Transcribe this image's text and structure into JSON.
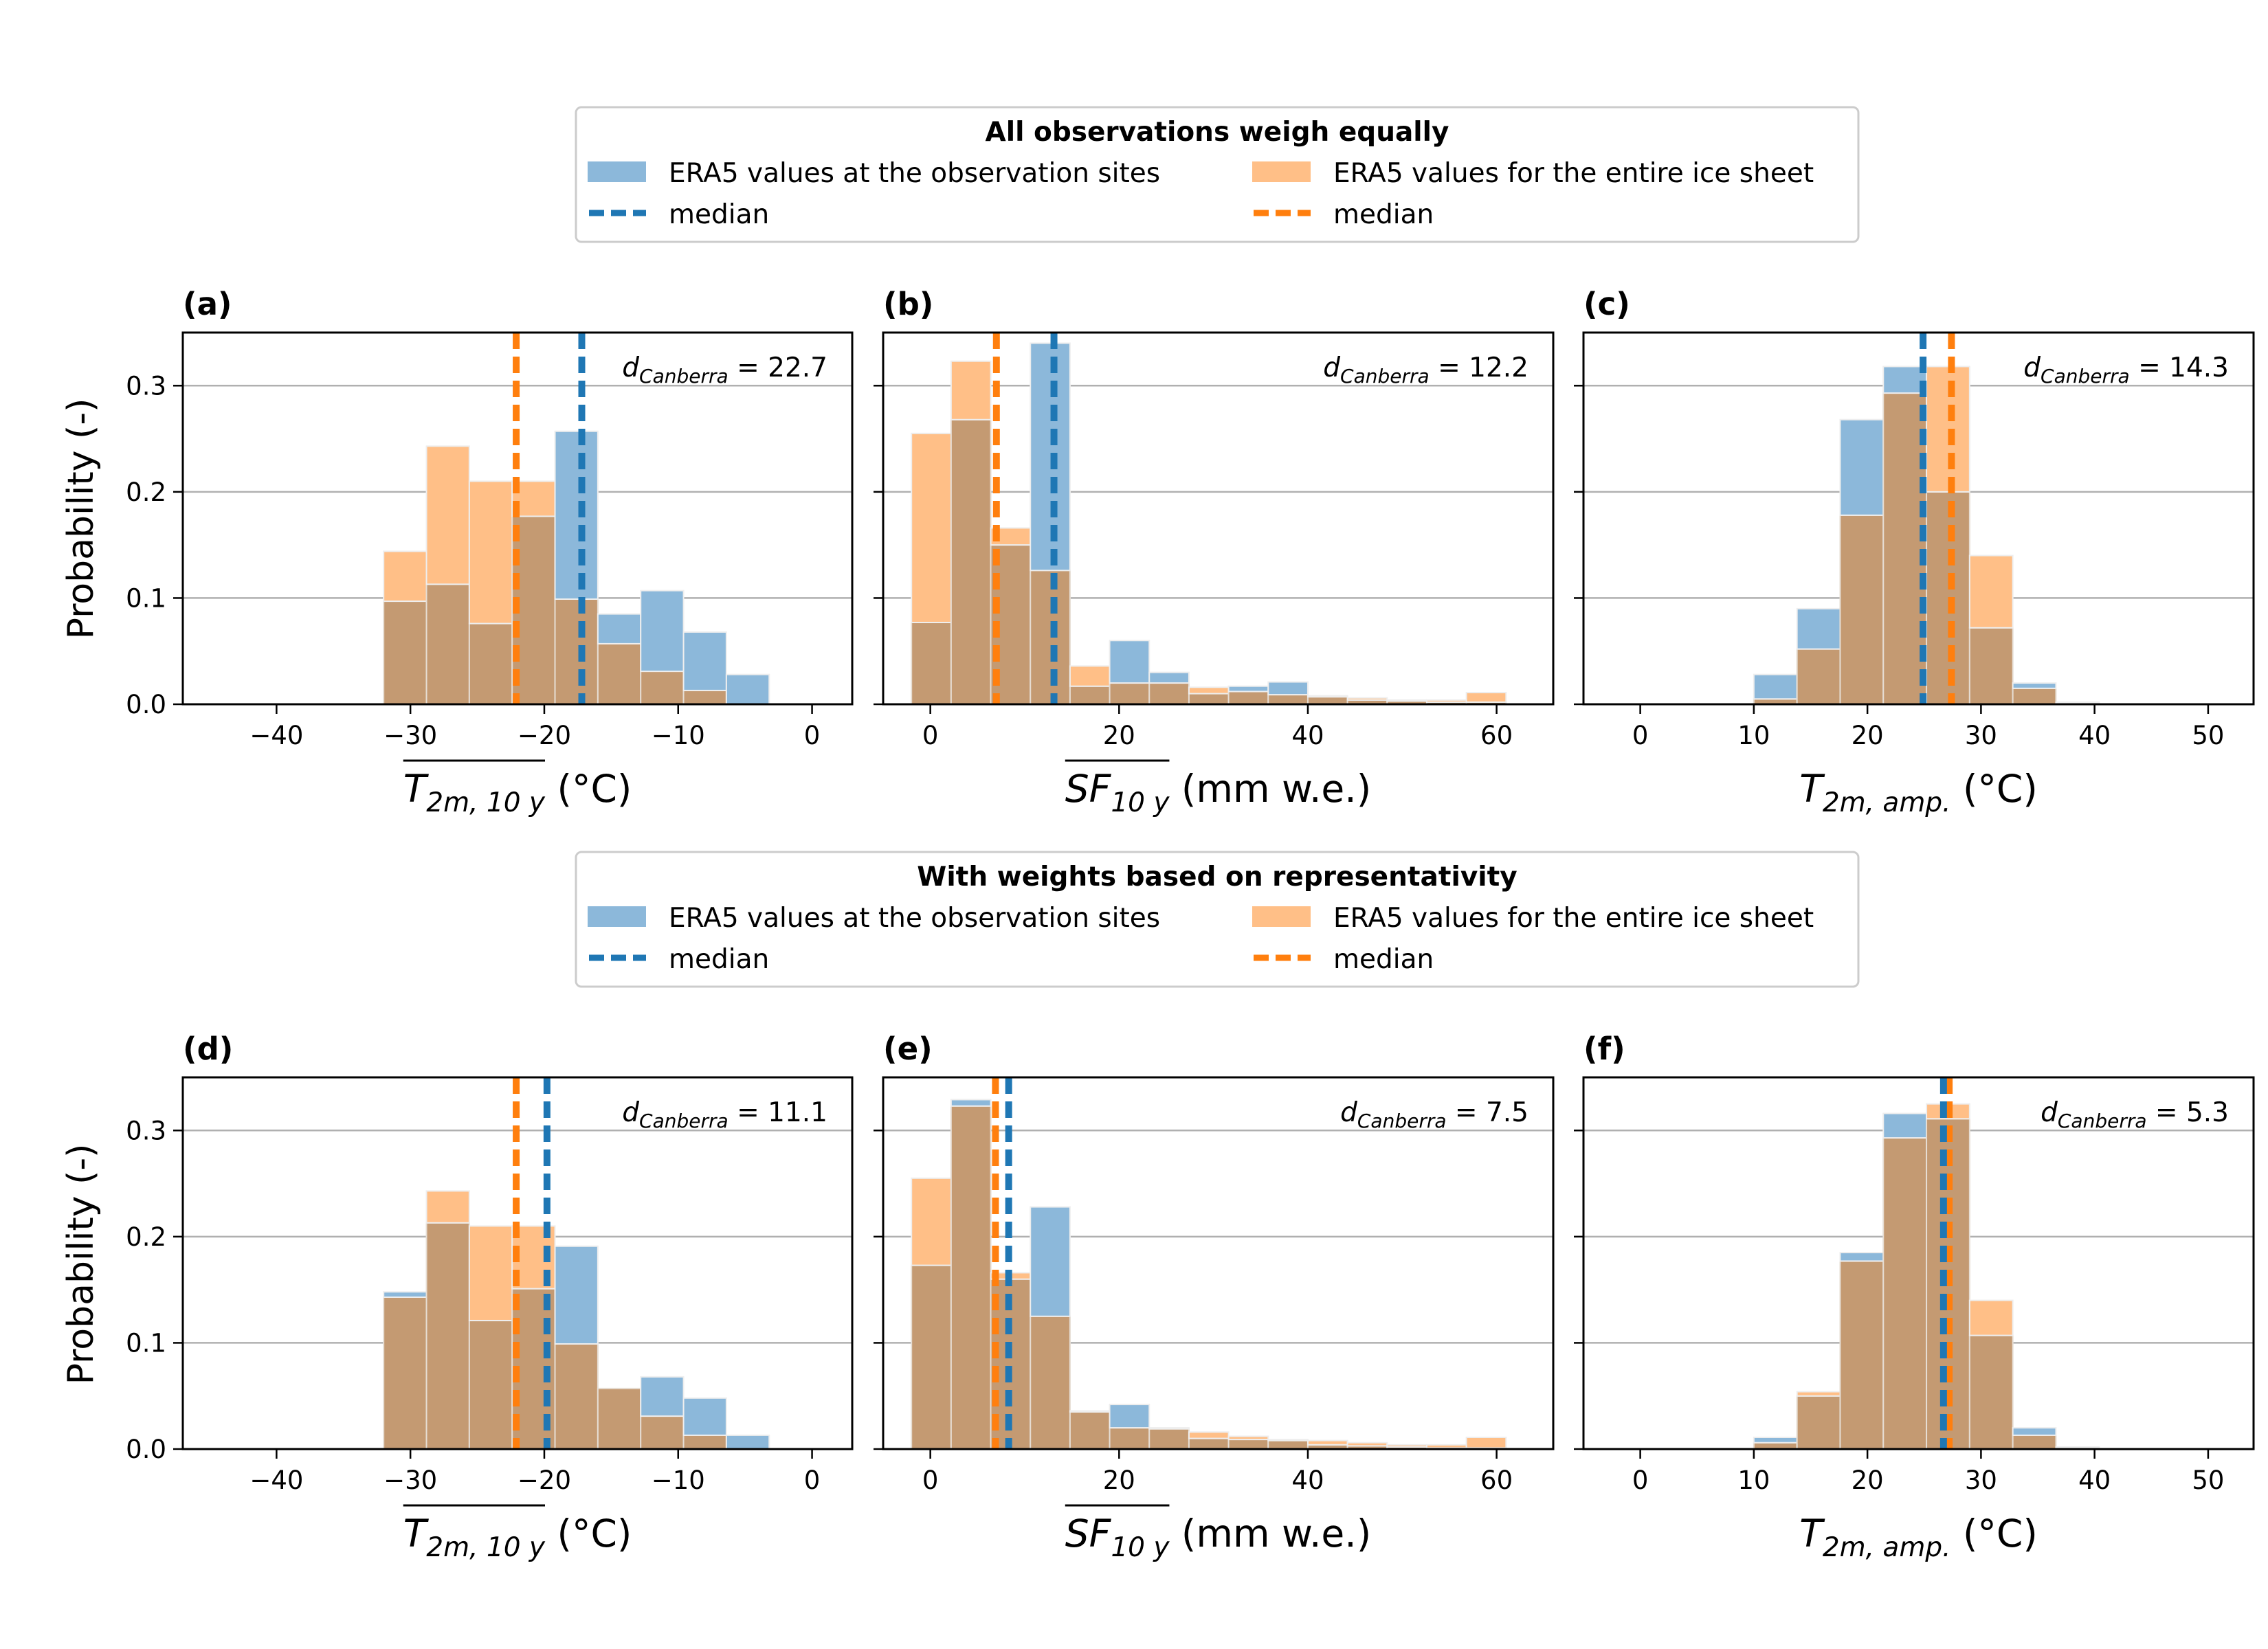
{
  "colors": {
    "sites": "#1f77b4",
    "sites_fill": "#8cb8da",
    "ice": "#ff7f0e",
    "ice_fill": "#ffbf87",
    "overlap": "#c49a72",
    "grid": "#b0b0b0"
  },
  "legends": [
    {
      "title": "All observations weigh equally",
      "entries": [
        "ERA5 values at the observation sites",
        "ERA5 values for the entire ice sheet",
        "median",
        "median"
      ]
    },
    {
      "title": "With weights based on representativity",
      "entries": [
        "ERA5 values at the observation sites",
        "ERA5 values for the entire ice sheet",
        "median",
        "median"
      ]
    }
  ],
  "ylabel": "Probability (-)",
  "chart_data": [
    {
      "panel": "(a)",
      "type": "histogram",
      "xlim": [
        -47,
        3
      ],
      "ylim": [
        0,
        0.35
      ],
      "xticks": [
        -40,
        -30,
        -20,
        -10,
        0
      ],
      "yticks": [
        0.0,
        0.1,
        0.2,
        0.3
      ],
      "xlabel": {
        "main": "T",
        "sub": "2m, 10 y",
        "overline": true,
        "unit": " (°C)"
      },
      "annotation": {
        "main": "d",
        "sub": "Canberra",
        "value": " = 22.7"
      },
      "bin_edges": [
        -32,
        -28.8,
        -25.6,
        -22.4,
        -19.2,
        -16,
        -12.8,
        -9.6,
        -6.4,
        -3.2
      ],
      "sites": [
        0.097,
        0.113,
        0.076,
        0.177,
        0.257,
        0.085,
        0.107,
        0.068,
        0.028
      ],
      "ice": [
        0.144,
        0.243,
        0.21,
        0.21,
        0.099,
        0.057,
        0.031,
        0.013,
        0.0
      ],
      "median_sites": -17.2,
      "median_ice": -22.1
    },
    {
      "panel": "(b)",
      "type": "histogram",
      "xlim": [
        -5,
        66
      ],
      "ylim": [
        0,
        0.35
      ],
      "xticks": [
        0,
        20,
        40,
        60
      ],
      "yticks": [
        0.0,
        0.1,
        0.2,
        0.3
      ],
      "xlabel": {
        "main": "SF",
        "sub": "10 y",
        "overline": true,
        "unit": " (mm w.e.)"
      },
      "annotation": {
        "main": "d",
        "sub": "Canberra",
        "value": " = 12.2"
      },
      "bin_edges": [
        -2,
        2.2,
        6.4,
        10.6,
        14.8,
        19,
        23.2,
        27.4,
        31.6,
        35.8,
        40,
        44.2,
        48.4,
        52.6,
        56.8,
        61
      ],
      "sites": [
        0.077,
        0.268,
        0.15,
        0.34,
        0.017,
        0.06,
        0.03,
        0.01,
        0.017,
        0.021,
        0.007,
        0.004,
        0.003,
        0.002,
        0.002
      ],
      "ice": [
        0.255,
        0.323,
        0.166,
        0.126,
        0.036,
        0.02,
        0.02,
        0.016,
        0.012,
        0.009,
        0.008,
        0.006,
        0.004,
        0.004,
        0.011
      ],
      "median_sites": 13.1,
      "median_ice": 7.0
    },
    {
      "panel": "(c)",
      "type": "histogram",
      "xlim": [
        -5,
        54
      ],
      "ylim": [
        0,
        0.35
      ],
      "xticks": [
        0,
        10,
        20,
        30,
        40,
        50
      ],
      "yticks": [
        0.0,
        0.1,
        0.2,
        0.3
      ],
      "xlabel": {
        "main": "T",
        "sub": "2m, amp.",
        "overline": false,
        "unit": " (°C)"
      },
      "annotation": {
        "main": "d",
        "sub": "Canberra",
        "value": " = 14.3"
      },
      "bin_edges": [
        10,
        13.8,
        17.6,
        21.4,
        25.2,
        29,
        32.8,
        36.6,
        40.4
      ],
      "sites": [
        0.028,
        0.09,
        0.268,
        0.318,
        0.2,
        0.072,
        0.02,
        0.002
      ],
      "ice": [
        0.005,
        0.052,
        0.178,
        0.293,
        0.318,
        0.14,
        0.015,
        0.001
      ],
      "median_sites": 24.9,
      "median_ice": 27.4
    },
    {
      "panel": "(d)",
      "type": "histogram",
      "xlim": [
        -47,
        3
      ],
      "ylim": [
        0,
        0.35
      ],
      "xticks": [
        -40,
        -30,
        -20,
        -10,
        0
      ],
      "yticks": [
        0.0,
        0.1,
        0.2,
        0.3
      ],
      "xlabel": {
        "main": "T",
        "sub": "2m, 10 y",
        "overline": true,
        "unit": " (°C)"
      },
      "annotation": {
        "main": "d",
        "sub": "Canberra",
        "value": " = 11.1"
      },
      "bin_edges": [
        -32,
        -28.8,
        -25.6,
        -22.4,
        -19.2,
        -16,
        -12.8,
        -9.6,
        -6.4,
        -3.2
      ],
      "sites": [
        0.148,
        0.213,
        0.121,
        0.151,
        0.191,
        0.057,
        0.068,
        0.048,
        0.013
      ],
      "ice": [
        0.143,
        0.243,
        0.21,
        0.21,
        0.099,
        0.057,
        0.031,
        0.013,
        0.0
      ],
      "median_sites": -19.8,
      "median_ice": -22.1
    },
    {
      "panel": "(e)",
      "type": "histogram",
      "xlim": [
        -5,
        66
      ],
      "ylim": [
        0,
        0.35
      ],
      "xticks": [
        0,
        20,
        40,
        60
      ],
      "yticks": [
        0.0,
        0.1,
        0.2,
        0.3
      ],
      "xlabel": {
        "main": "SF",
        "sub": "10 y",
        "overline": true,
        "unit": " (mm w.e.)"
      },
      "annotation": {
        "main": "d",
        "sub": "Canberra",
        "value": " = 7.5"
      },
      "bin_edges": [
        -2,
        2.2,
        6.4,
        10.6,
        14.8,
        19,
        23.2,
        27.4,
        31.6,
        35.8,
        40,
        44.2,
        48.4,
        52.6,
        56.8,
        61
      ],
      "sites": [
        0.173,
        0.329,
        0.16,
        0.228,
        0.035,
        0.042,
        0.019,
        0.01,
        0.009,
        0.008,
        0.004,
        0.003,
        0.002,
        0.001,
        0.001
      ],
      "ice": [
        0.255,
        0.323,
        0.166,
        0.125,
        0.036,
        0.02,
        0.02,
        0.016,
        0.012,
        0.009,
        0.008,
        0.006,
        0.004,
        0.004,
        0.011
      ],
      "median_sites": 8.3,
      "median_ice": 6.9
    },
    {
      "panel": "(f)",
      "type": "histogram",
      "xlim": [
        -5,
        54
      ],
      "ylim": [
        0,
        0.35
      ],
      "xticks": [
        0,
        10,
        20,
        30,
        40,
        50
      ],
      "yticks": [
        0.0,
        0.1,
        0.2,
        0.3
      ],
      "xlabel": {
        "main": "T",
        "sub": "2m, amp.",
        "overline": false,
        "unit": " (°C)"
      },
      "annotation": {
        "main": "d",
        "sub": "Canberra",
        "value": " = 5.3"
      },
      "bin_edges": [
        10,
        13.8,
        17.6,
        21.4,
        25.2,
        29,
        32.8,
        36.6,
        40.4
      ],
      "sites": [
        0.011,
        0.05,
        0.185,
        0.316,
        0.311,
        0.107,
        0.02,
        0.002
      ],
      "ice": [
        0.006,
        0.054,
        0.177,
        0.293,
        0.325,
        0.14,
        0.013,
        0.001
      ],
      "median_sites": 26.7,
      "median_ice": 27.2
    }
  ]
}
